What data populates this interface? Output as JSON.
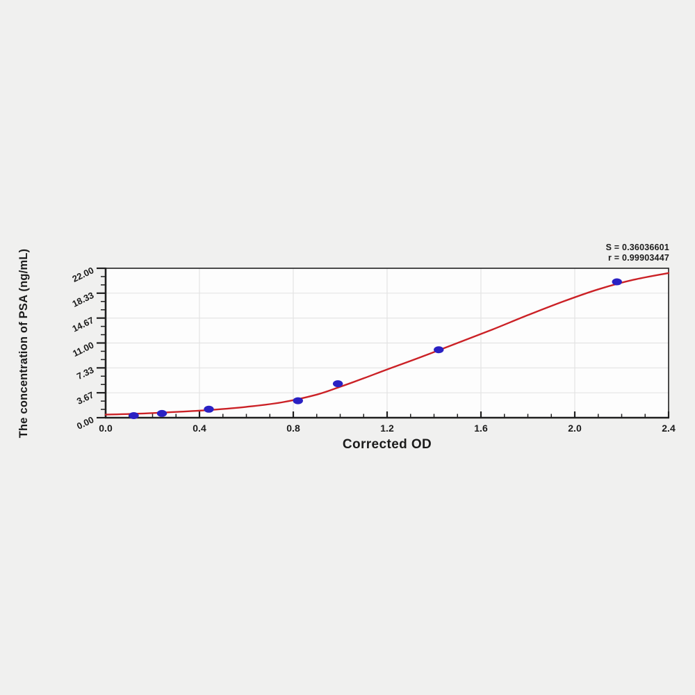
{
  "page": {
    "background": "#f0f0ef"
  },
  "chart_data": {
    "type": "scatter",
    "title": "",
    "xlabel": "Corrected OD",
    "ylabel": "The concentration of PSA (ng/mL)",
    "annotations": {
      "s_line": "S = 0.36036601",
      "r_line": "r = 0.99903447"
    },
    "stats": {
      "S": 0.36036601,
      "r": 0.99903447
    },
    "xlim": [
      0.0,
      2.4
    ],
    "ylim": [
      0.0,
      22.0
    ],
    "x_ticks": {
      "values": [
        0.0,
        0.4,
        0.8,
        1.2,
        1.6,
        2.0,
        2.4
      ],
      "labels": [
        "0.0",
        "0.4",
        "0.8",
        "1.2",
        "1.6",
        "2.0",
        "2.4"
      ],
      "minor_divisions": 4
    },
    "y_ticks": {
      "values": [
        0,
        3.6667,
        7.3333,
        11,
        14.6667,
        18.3333,
        22
      ],
      "labels": [
        "0.00",
        "3.67",
        "7.33",
        "11.00",
        "14.67",
        "18.33",
        "22.00"
      ],
      "minor_divisions": 3
    },
    "grid": "major",
    "legend": "none",
    "series": [
      {
        "name": "fit-curve",
        "type": "line",
        "color": "#cb2126",
        "points": [
          [
            0.0,
            0.45
          ],
          [
            0.15,
            0.6
          ],
          [
            0.3,
            0.85
          ],
          [
            0.45,
            1.15
          ],
          [
            0.6,
            1.6
          ],
          [
            0.75,
            2.25
          ],
          [
            0.9,
            3.4
          ],
          [
            1.0,
            4.55
          ],
          [
            1.1,
            5.8
          ],
          [
            1.2,
            7.1
          ],
          [
            1.35,
            9.0
          ],
          [
            1.5,
            11.0
          ],
          [
            1.65,
            13.0
          ],
          [
            1.8,
            15.1
          ],
          [
            1.95,
            17.1
          ],
          [
            2.1,
            18.9
          ],
          [
            2.25,
            20.3
          ],
          [
            2.4,
            21.3
          ]
        ]
      },
      {
        "name": "standard-points",
        "type": "scatter",
        "marker": "ellipse",
        "color": "#2a21c3",
        "x": [
          0.12,
          0.24,
          0.44,
          0.82,
          0.99,
          1.42,
          2.18
        ],
        "y": [
          0.3125,
          0.625,
          1.25,
          2.5,
          5.0,
          10.0,
          20.0
        ]
      }
    ],
    "colors": {
      "axis": "#1f1f1f",
      "grid": "#e3e3e3",
      "text": "#1b1b1b",
      "plot_bg": "#fdfdfd"
    }
  }
}
